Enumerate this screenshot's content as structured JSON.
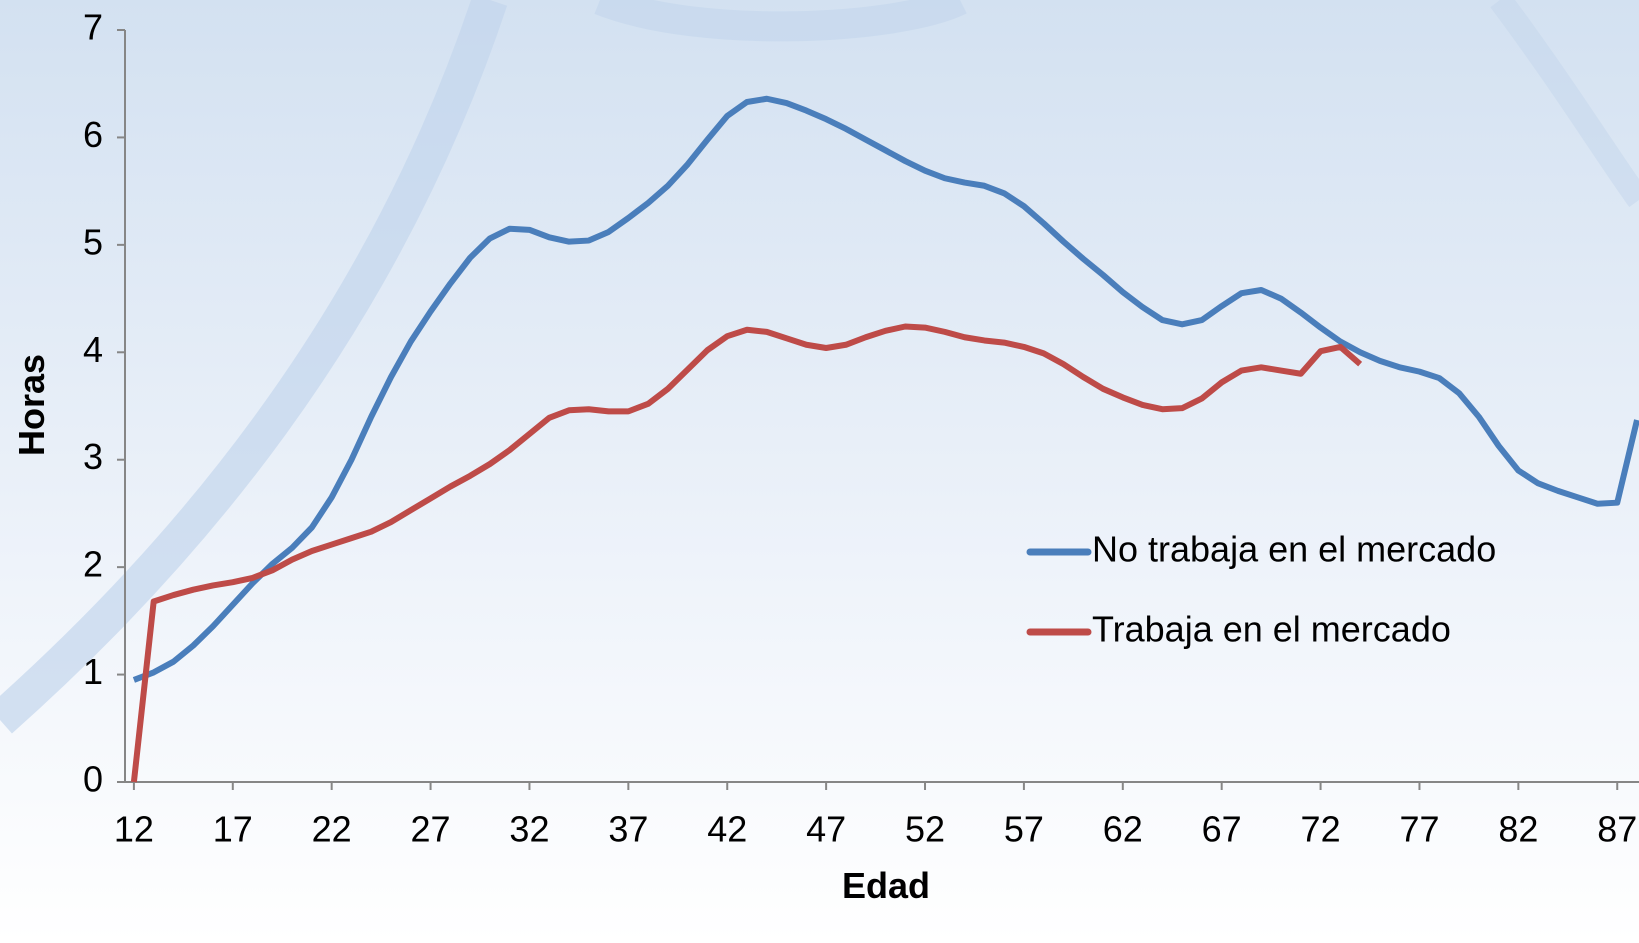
{
  "chart_data": {
    "type": "line",
    "x_label": "Edad",
    "y_label": "Horas",
    "x": [
      12,
      13,
      14,
      15,
      16,
      17,
      18,
      19,
      20,
      21,
      22,
      23,
      24,
      25,
      26,
      27,
      28,
      29,
      30,
      31,
      32,
      33,
      34,
      35,
      36,
      37,
      38,
      39,
      40,
      41,
      42,
      43,
      44,
      45,
      46,
      47,
      48,
      49,
      50,
      51,
      52,
      53,
      54,
      55,
      56,
      57,
      58,
      59,
      60,
      61,
      62,
      63,
      64,
      65,
      66,
      67,
      68,
      69,
      70,
      71,
      72,
      73,
      74,
      75,
      76,
      77,
      78,
      79,
      80,
      81,
      82,
      83,
      84,
      85,
      86,
      87,
      88
    ],
    "series": [
      {
        "name": "No trabaja en el mercado",
        "color": "#4a7ebb",
        "values": [
          0.95,
          1.02,
          1.12,
          1.27,
          1.45,
          1.65,
          1.85,
          2.03,
          2.18,
          2.37,
          2.65,
          3.0,
          3.4,
          3.77,
          4.1,
          4.38,
          4.64,
          4.88,
          5.06,
          5.15,
          5.14,
          5.07,
          5.03,
          5.04,
          5.12,
          5.25,
          5.39,
          5.55,
          5.75,
          5.98,
          6.2,
          6.33,
          6.36,
          6.32,
          6.25,
          6.17,
          6.08,
          5.98,
          5.88,
          5.78,
          5.69,
          5.62,
          5.58,
          5.55,
          5.48,
          5.36,
          5.2,
          5.03,
          4.87,
          4.72,
          4.56,
          4.42,
          4.3,
          4.26,
          4.3,
          4.43,
          4.55,
          4.58,
          4.5,
          4.37,
          4.23,
          4.1,
          4.0,
          3.92,
          3.86,
          3.82,
          3.76,
          3.62,
          3.4,
          3.13,
          2.9,
          2.78,
          2.71,
          2.65,
          2.59,
          2.6,
          3.37
        ]
      },
      {
        "name": "Trabaja en el mercado",
        "color": "#be4b48",
        "values": [
          0,
          1.68,
          1.74,
          1.79,
          1.83,
          1.86,
          1.9,
          1.97,
          2.07,
          2.15,
          2.21,
          2.27,
          2.33,
          2.42,
          2.53,
          2.64,
          2.75,
          2.85,
          2.96,
          3.09,
          3.24,
          3.39,
          3.46,
          3.47,
          3.45,
          3.45,
          3.52,
          3.66,
          3.84,
          4.02,
          4.15,
          4.21,
          4.19,
          4.13,
          4.07,
          4.04,
          4.07,
          4.14,
          4.2,
          4.24,
          4.23,
          4.19,
          4.14,
          4.11,
          4.09,
          4.05,
          3.99,
          3.89,
          3.77,
          3.66,
          3.58,
          3.51,
          3.47,
          3.48,
          3.57,
          3.72,
          3.83,
          3.86,
          3.83,
          3.8,
          4.01,
          4.05,
          3.89,
          null,
          null,
          null,
          null,
          null,
          null,
          null,
          null,
          null,
          null,
          null,
          null,
          null,
          null
        ]
      }
    ],
    "xlim": [
      11.55,
      88.1
    ],
    "xticks": [
      12,
      17,
      22,
      27,
      32,
      37,
      42,
      47,
      52,
      57,
      62,
      67,
      72,
      77,
      82,
      87
    ],
    "ylim": [
      0,
      7
    ],
    "yticks": [
      0,
      1,
      2,
      3,
      4,
      5,
      6,
      7
    ],
    "legend": "right"
  }
}
